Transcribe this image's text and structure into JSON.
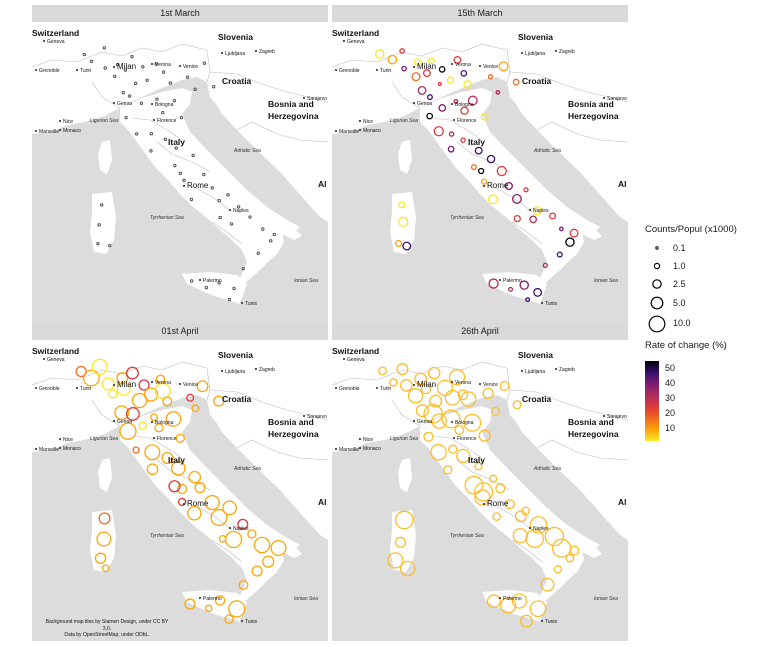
{
  "panels": [
    {
      "title": "1st March",
      "stage": 0
    },
    {
      "title": "15th March",
      "stage": 1
    },
    {
      "title": "01st April",
      "stage": 2
    },
    {
      "title": "26th April",
      "stage": 3
    }
  ],
  "map_labels": {
    "countries": [
      "Switzerland",
      "Slovenia",
      "Croatia",
      "Bosnia and",
      "Herzegovina",
      "Italy",
      "Al"
    ],
    "cities": [
      "Geneva",
      "Grenoble",
      "Turin",
      "Milan",
      "Verona",
      "Venice",
      "Ljubljana",
      "Zagreb",
      "Genoa",
      "Bologna",
      "Nice",
      "Monaco",
      "Florence",
      "Marseille",
      "Rome",
      "Naples",
      "Palermo",
      "Tunis",
      "Sarajevo"
    ],
    "seas": [
      "Ligurian Sea",
      "Adriatic Sea",
      "Tyrrhenian Sea",
      "Ionian Sea"
    ]
  },
  "legend_size": {
    "title": "Counts/Popul (x1000)",
    "items": [
      "0.1",
      "1.0",
      "2.5",
      "5.0",
      "10.0"
    ]
  },
  "legend_color": {
    "title": "Rate of change (%)",
    "ticks": [
      "50",
      "40",
      "30",
      "20",
      "10"
    ],
    "colors": [
      "#fde725",
      "#fca50a",
      "#f16a1e",
      "#dd3a3a",
      "#b12a5c",
      "#7c1d6f",
      "#3b0f70",
      "#000004"
    ]
  },
  "credit": [
    "Background map tiles by Stamen Design, under CC BY 3.0.",
    "Data by OpenStreetMap, under ODbL."
  ],
  "colors": {
    "land": "#ffffff",
    "sea": "#dcdcdc",
    "border": "#bdbdbd",
    "strip": "#d9d9d9"
  }
}
